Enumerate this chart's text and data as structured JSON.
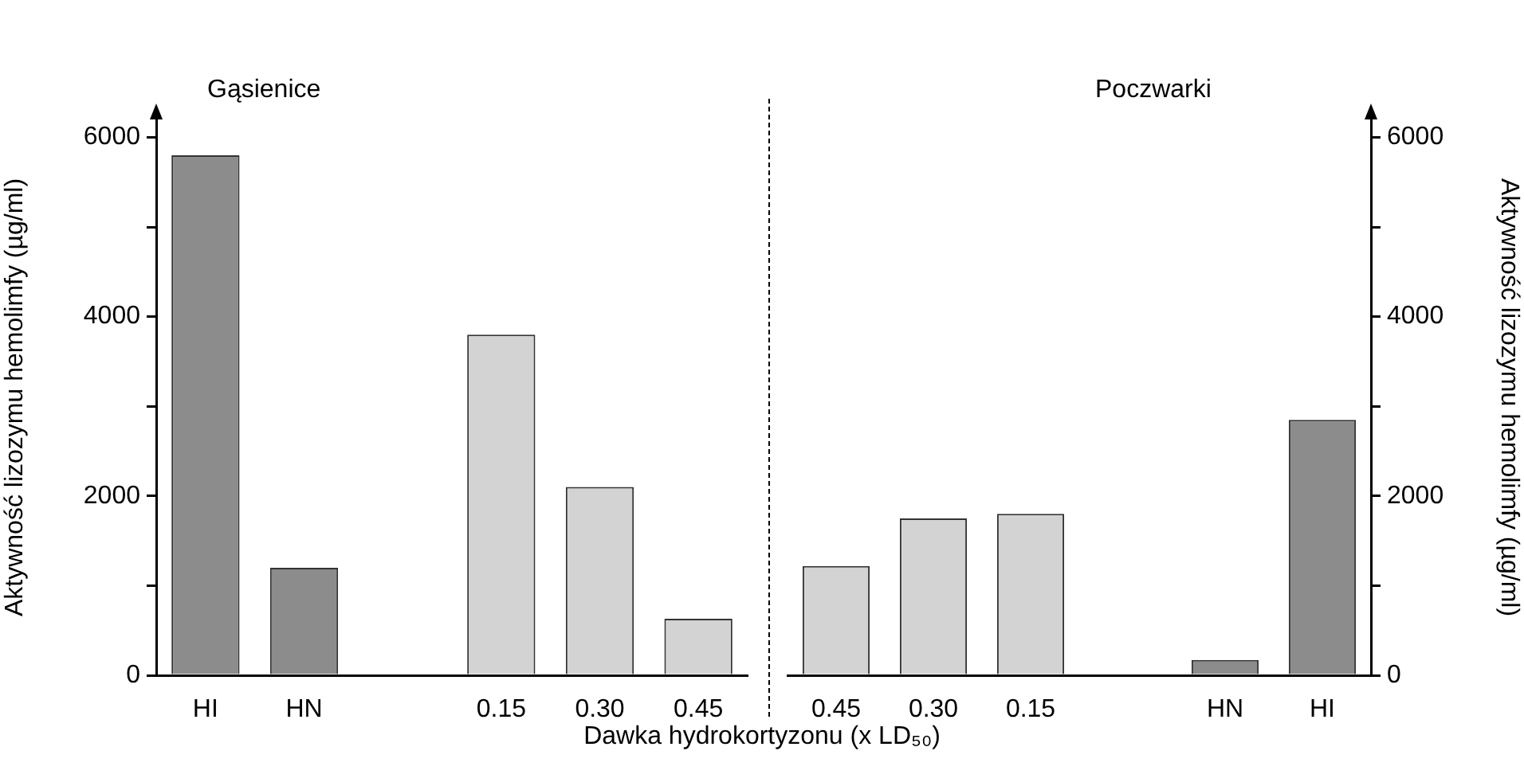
{
  "chart_data": [
    {
      "type": "bar",
      "title": "Gąsienice",
      "xlabel": "Dawka hydrokortyzonu (x LD₅₀)",
      "ylabel": "Aktywność lizozymu hemolimfy (µg/ml)",
      "categories": [
        "HI",
        "HN",
        null,
        "0.15",
        "0.30",
        "0.45"
      ],
      "values": [
        5800,
        1200,
        null,
        3800,
        2100,
        630
      ],
      "colors": [
        "#8c8c8c",
        "#8c8c8c",
        null,
        "#d3d3d3",
        "#d3d3d3",
        "#d3d3d3"
      ],
      "ylim": [
        0,
        6200
      ],
      "yticks": [
        0,
        {
          "value": 1000,
          "label": null
        },
        2000,
        {
          "value": 3000,
          "label": null
        },
        4000,
        {
          "value": 5000,
          "label": null
        },
        6000
      ]
    },
    {
      "type": "bar",
      "title": "Poczwarki",
      "y2label": "Aktywność lizozymu hemolimfy (µg/ml)",
      "categories": [
        "0.45",
        "0.30",
        "0.15",
        null,
        "HN",
        "HI"
      ],
      "series": [
        {
          "values": [
            1220,
            1750,
            1800,
            null,
            170,
            2850
          ],
          "colors": [
            "#d3d3d3",
            "#d3d3d3",
            "#d3d3d3",
            null,
            "#8c8c8c",
            "#8c8c8c"
          ],
          "axis": "y2"
        }
      ],
      "y2lim": [
        0,
        6200
      ],
      "y2ticks": [
        0,
        {
          "value": 1000,
          "label": null
        },
        2000,
        {
          "value": 3000,
          "label": null
        },
        4000,
        {
          "value": 5000,
          "label": null
        },
        6000
      ]
    }
  ]
}
